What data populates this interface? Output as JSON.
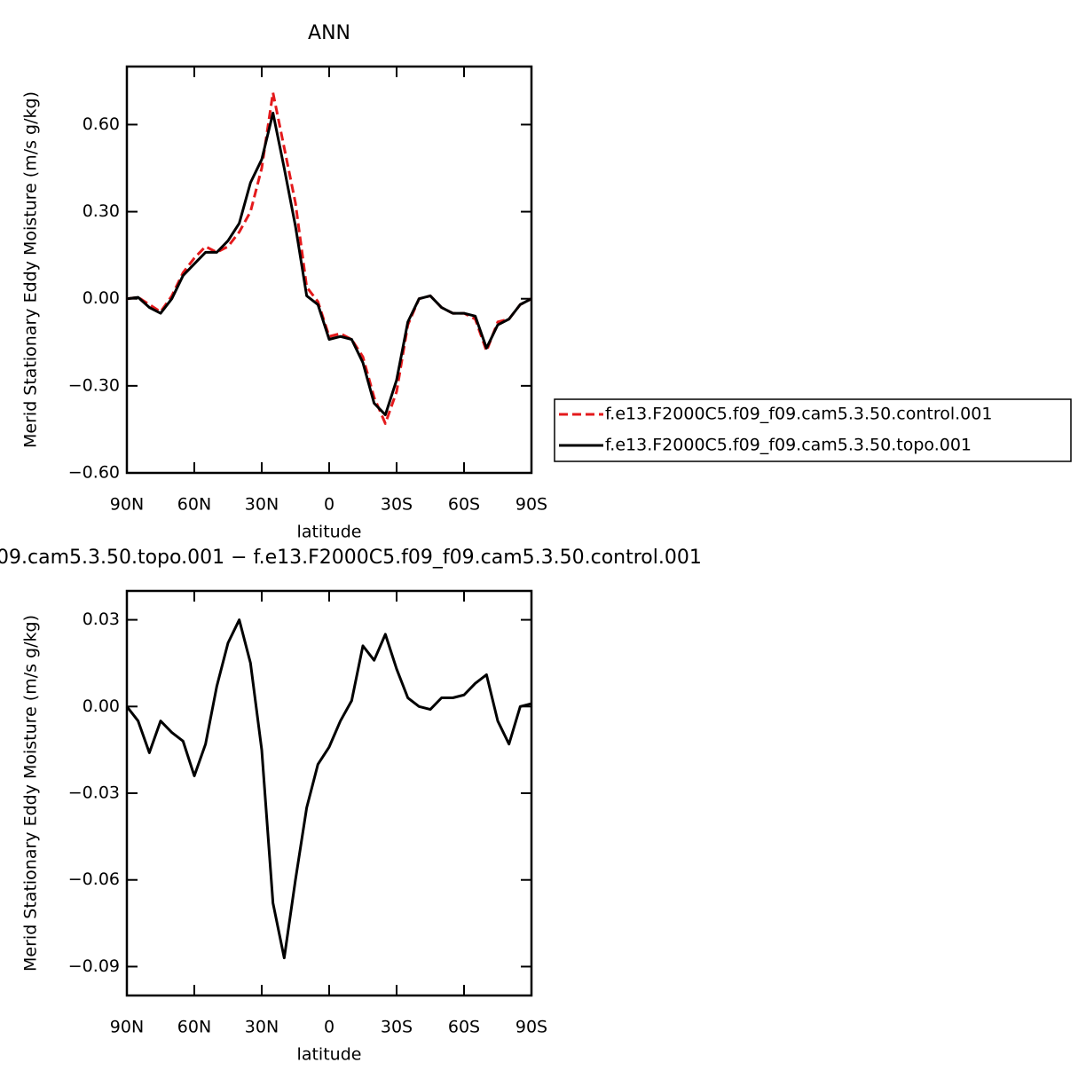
{
  "chart_data": [
    {
      "type": "line",
      "title": "ANN",
      "xlabel": "latitude",
      "ylabel": "Merid Stationary Eddy Moisture (m/s g/kg)",
      "x": [
        90,
        85,
        80,
        75,
        70,
        65,
        60,
        55,
        50,
        45,
        40,
        35,
        30,
        25,
        20,
        15,
        10,
        5,
        0,
        -5,
        -10,
        -15,
        -20,
        -25,
        -30,
        -35,
        -40,
        -45,
        -50,
        -55,
        -60,
        -65,
        -70,
        -75,
        -80,
        -85,
        -90
      ],
      "xlim": [
        90,
        -90
      ],
      "xticks": [
        {
          "value": 90,
          "label": "90N"
        },
        {
          "value": 60,
          "label": "60N"
        },
        {
          "value": 30,
          "label": "30N"
        },
        0,
        {
          "value": -30,
          "label": "30S"
        },
        {
          "value": -60,
          "label": "60S"
        },
        {
          "value": -90,
          "label": "90S"
        }
      ],
      "ylim": [
        -0.6,
        0.8
      ],
      "yticks": [
        {
          "value": -0.6,
          "label": "−0.60"
        },
        {
          "value": -0.3,
          "label": "−0.30"
        },
        {
          "value": 0,
          "label": "0.00"
        },
        {
          "value": 0.3,
          "label": "0.30"
        },
        {
          "value": 0.6,
          "label": "0.60"
        }
      ],
      "legend": "outside-right",
      "series": [
        {
          "name": "f.e13.F2000C5.f09_f09.cam5.3.50.control.001",
          "color": "#e41a1c",
          "dashed": true,
          "values": [
            0.0,
            0.005,
            -0.02,
            -0.045,
            0.01,
            0.09,
            0.14,
            0.18,
            0.16,
            0.18,
            0.23,
            0.3,
            0.45,
            0.71,
            0.52,
            0.33,
            0.04,
            -0.01,
            -0.13,
            -0.12,
            -0.14,
            -0.2,
            -0.34,
            -0.43,
            -0.32,
            -0.09,
            0.0,
            0.01,
            -0.03,
            -0.05,
            -0.05,
            -0.07,
            -0.18,
            -0.08,
            -0.07,
            -0.02,
            0.0
          ]
        },
        {
          "name": "f.e13.F2000C5.f09_f09.cam5.3.50.topo.001",
          "color": "#000000",
          "dashed": false,
          "values": [
            0.0,
            0.005,
            -0.03,
            -0.05,
            0.0,
            0.08,
            0.12,
            0.16,
            0.16,
            0.2,
            0.26,
            0.4,
            0.48,
            0.64,
            0.45,
            0.25,
            0.01,
            -0.02,
            -0.14,
            -0.13,
            -0.14,
            -0.22,
            -0.36,
            -0.4,
            -0.28,
            -0.08,
            0.0,
            0.01,
            -0.03,
            -0.05,
            -0.05,
            -0.06,
            -0.17,
            -0.09,
            -0.07,
            -0.02,
            0.0
          ]
        }
      ]
    },
    {
      "type": "line",
      "title": "09.cam5.3.50.topo.001 − f.e13.F2000C5.f09_f09.cam5.3.50.control.001",
      "xlabel": "latitude",
      "ylabel": "Merid Stationary Eddy Moisture (m/s g/kg)",
      "x": [
        90,
        85,
        80,
        75,
        70,
        65,
        60,
        55,
        50,
        45,
        40,
        35,
        30,
        25,
        20,
        15,
        10,
        5,
        0,
        -5,
        -10,
        -15,
        -20,
        -25,
        -30,
        -35,
        -40,
        -45,
        -50,
        -55,
        -60,
        -65,
        -70,
        -75,
        -80,
        -85,
        -90
      ],
      "xlim": [
        90,
        -90
      ],
      "xticks": [
        {
          "value": 90,
          "label": "90N"
        },
        {
          "value": 60,
          "label": "60N"
        },
        {
          "value": 30,
          "label": "30N"
        },
        0,
        {
          "value": -30,
          "label": "30S"
        },
        {
          "value": -60,
          "label": "60S"
        },
        {
          "value": -90,
          "label": "90S"
        }
      ],
      "ylim": [
        -0.1,
        0.04
      ],
      "yticks": [
        {
          "value": -0.09,
          "label": "−0.09"
        },
        {
          "value": -0.06,
          "label": "−0.06"
        },
        {
          "value": -0.03,
          "label": "−0.03"
        },
        {
          "value": 0,
          "label": "0.00"
        },
        {
          "value": 0.03,
          "label": "0.03"
        }
      ],
      "series": [
        {
          "color": "#000000",
          "dashed": false,
          "values": [
            0,
            -0.005,
            -0.016,
            -0.005,
            -0.009,
            -0.012,
            -0.024,
            -0.013,
            0.007,
            0.022,
            0.03,
            0.015,
            -0.015,
            -0.068,
            -0.087,
            -0.06,
            -0.035,
            -0.02,
            -0.014,
            -0.005,
            0.002,
            0.021,
            0.016,
            0.025,
            0.013,
            0.003,
            0.0,
            -0.001,
            0.003,
            0.003,
            0.004,
            0.008,
            0.011,
            -0.005,
            -0.013,
            0.0,
            0.001
          ]
        }
      ]
    }
  ]
}
